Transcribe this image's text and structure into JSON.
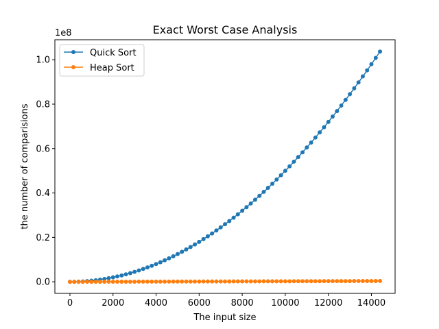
{
  "chart_data": {
    "type": "line",
    "title": "Exact Worst Case Analysis",
    "xlabel": "The input size",
    "ylabel": "the number of comparisions",
    "y_offset_label": "1e8",
    "y_multiplier": 100000000,
    "xlim": [
      -700,
      15100
    ],
    "ylim": [
      -5200000,
      109000000
    ],
    "x_ticks": [
      0,
      2000,
      4000,
      6000,
      8000,
      10000,
      12000,
      14000
    ],
    "x_tick_labels": [
      "0",
      "2000",
      "4000",
      "6000",
      "8000",
      "10000",
      "12000",
      "14000"
    ],
    "y_ticks": [
      0,
      20000000,
      40000000,
      60000000,
      80000000,
      100000000
    ],
    "y_tick_labels": [
      "0.0",
      "0.2",
      "0.4",
      "0.6",
      "0.8",
      "1.0"
    ],
    "grid": false,
    "legend_position": "top-left",
    "x": [
      0,
      200,
      400,
      600,
      800,
      1000,
      1200,
      1400,
      1600,
      1800,
      2000,
      2200,
      2400,
      2600,
      2800,
      3000,
      3200,
      3400,
      3600,
      3800,
      4000,
      4200,
      4400,
      4600,
      4800,
      5000,
      5200,
      5400,
      5600,
      5800,
      6000,
      6200,
      6400,
      6600,
      6800,
      7000,
      7200,
      7400,
      7600,
      7800,
      8000,
      8200,
      8400,
      8600,
      8800,
      9000,
      9200,
      9400,
      9600,
      9800,
      10000,
      10200,
      10400,
      10600,
      10800,
      11000,
      11200,
      11400,
      11600,
      11800,
      12000,
      12200,
      12400,
      12600,
      12800,
      13000,
      13200,
      13400,
      13600,
      13800,
      14000,
      14200,
      14400
    ],
    "series": [
      {
        "name": "Quick Sort",
        "color": "#1f77b4",
        "values": [
          0,
          20000,
          80000,
          180000,
          320000,
          500000,
          720000,
          980000,
          1280000,
          1620000,
          2000000,
          2420000,
          2880000,
          3380000,
          3920000,
          4500000,
          5120000,
          5780000,
          6480000,
          7220000,
          8000000,
          8820000,
          9680000,
          10580000,
          11520000,
          12500000,
          13520000,
          14580000,
          15680000,
          16820000,
          18000000,
          19220000,
          20480000,
          21780000,
          23120000,
          24500000,
          25920000,
          27380000,
          28880000,
          30420000,
          32000000,
          33620000,
          35280000,
          36980000,
          38720000,
          40500000,
          42320000,
          44180000,
          46080000,
          48020000,
          50000000,
          52020000,
          54080000,
          56180000,
          58320000,
          60500000,
          62720000,
          64980000,
          67280000,
          69620000,
          72000000,
          74420000,
          76880000,
          79380000,
          81920000,
          84500000,
          87120000,
          89780000,
          92480000,
          95220000,
          98000000,
          100820000,
          103680000
        ]
      },
      {
        "name": "Heap Sort",
        "color": "#ff7f0e",
        "values": [
          0,
          2600,
          6000,
          9800,
          13700,
          17900,
          22000,
          26600,
          31000,
          35500,
          40000,
          44800,
          49500,
          54300,
          59100,
          64000,
          68800,
          73800,
          78800,
          83800,
          88800,
          93900,
          99000,
          104100,
          109300,
          114500,
          119700,
          124900,
          130200,
          135500,
          140800,
          146100,
          151400,
          156800,
          162200,
          167600,
          173000,
          178400,
          183800,
          189300,
          194800,
          200300,
          205800,
          211300,
          216800,
          222400,
          227900,
          233500,
          239100,
          244700,
          250300,
          255900,
          261600,
          267200,
          272900,
          278600,
          284300,
          290000,
          295700,
          301400,
          307100,
          312900,
          318600,
          324400,
          330200,
          336000,
          341800,
          347600,
          353400,
          359200,
          365000,
          370900,
          376700
        ]
      }
    ]
  }
}
